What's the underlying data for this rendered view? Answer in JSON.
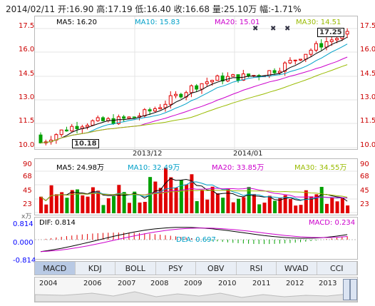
{
  "header": {
    "text": "2014/02/11 开:16.90 高:17.19 低:16.40 收:16.68 量:25.10万 幅:-1.71%"
  },
  "price": {
    "ma5": "MA5: 16.20",
    "ma10": "MA10: 15.83",
    "ma20": "MA20: 15.01",
    "ma30": "MA30: 14.51",
    "yticks": [
      "17.5",
      "16.0",
      "14.5",
      "13.0",
      "11.5",
      "10.0"
    ],
    "low_label": "10.18",
    "high_label": "17.25",
    "xticks": [
      "2013/12",
      "2014/01"
    ],
    "colors": {
      "up": "#e00000",
      "down": "#00a000",
      "ma5": "#000000",
      "ma10": "#00a0c8",
      "ma20": "#cc00cc",
      "ma30": "#99bb00"
    }
  },
  "volume": {
    "ma5": "MA5: 24.98万",
    "ma10": "MA10: 32.49万",
    "ma20": "MA20: 33.85万",
    "ma30": "MA30: 34.55万",
    "yticks": [
      "90",
      "68",
      "45",
      "23"
    ],
    "unit": "x万"
  },
  "macd": {
    "dif": "DIF: 0.814",
    "dea": "DEA: 0.697",
    "macd": "MACD: 0.234",
    "yticks": [
      "0.814",
      "0.000",
      "-0.814"
    ]
  },
  "tabs": [
    "MACD",
    "KDJ",
    "BOLL",
    "PSY",
    "OBV",
    "RSI",
    "WVAD",
    "CCI"
  ],
  "timeline": {
    "years": [
      "2004",
      "2006",
      "2007",
      "2008",
      "2009",
      "2010",
      "2011",
      "2012",
      "2013"
    ]
  }
}
